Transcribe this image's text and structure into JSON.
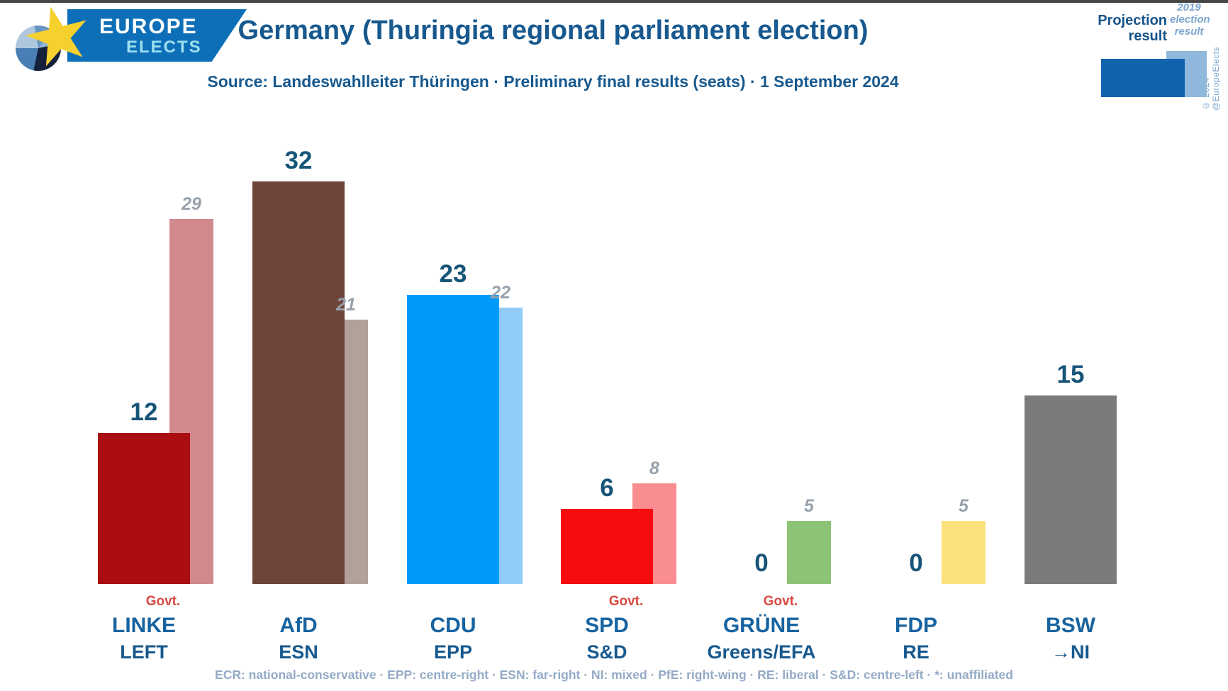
{
  "logo": {
    "line1": "EUROPE",
    "line2": "ELECTS",
    "banner_color": "#0d6fb8",
    "star_color": "#f6d02c"
  },
  "header": {
    "title": "Germany (Thuringia regional parliament election)",
    "subtitle": "Source: Landeswahlleiter Thüringen · Preliminary final results (seats) · 1 September 2024"
  },
  "legend": {
    "projection_label_line1": "Projection",
    "projection_label_line2": "result",
    "previous_label_line1": "2019",
    "previous_label_line2": "election",
    "previous_label_line3": "result",
    "projection_color": "#1263ae",
    "previous_color": "#8fb8dc",
    "copyright": "© 2024 @EuropeElects"
  },
  "chart_data": {
    "type": "bar",
    "title": "Germany (Thuringia regional parliament election)",
    "categories": [
      "LINKE",
      "AfD",
      "CDU",
      "SPD",
      "GRÜNE",
      "FDP",
      "BSW"
    ],
    "series": [
      {
        "name": "Projection result",
        "values": [
          12,
          32,
          23,
          6,
          0,
          0,
          15
        ]
      },
      {
        "name": "2019 election result",
        "values": [
          29,
          21,
          22,
          8,
          5,
          5,
          null
        ]
      }
    ],
    "ylim": [
      0,
      35
    ],
    "grid": false,
    "legend_position": "top-right"
  },
  "parties": [
    {
      "slug": "linke",
      "name": "LINKE",
      "group": "LEFT",
      "projection": 12,
      "previous": 29,
      "projection_display": "12",
      "previous_display": "29",
      "projection_color": "#aa0e10",
      "previous_color": "#d2898d",
      "govt": true
    },
    {
      "slug": "afd",
      "name": "AfD",
      "group": "ESN",
      "projection": 32,
      "previous": 21,
      "projection_display": "32",
      "previous_display": "21",
      "projection_color": "#704539",
      "previous_color": "#b2a19b",
      "govt": false
    },
    {
      "slug": "cdu",
      "name": "CDU",
      "group": "EPP",
      "projection": 23,
      "previous": 22,
      "projection_display": "23",
      "previous_display": "22",
      "projection_color": "#009bfa",
      "previous_color": "#92ccf8",
      "govt": false
    },
    {
      "slug": "spd",
      "name": "SPD",
      "group": "S&D",
      "projection": 6,
      "previous": 8,
      "projection_display": "6",
      "previous_display": "8",
      "projection_color": "#f60c0c",
      "previous_color": "#fa8d90",
      "govt": true
    },
    {
      "slug": "grune",
      "name": "GRÜNE",
      "group": "Greens/EFA",
      "projection": 0,
      "previous": 5,
      "projection_display": "0",
      "previous_display": "5",
      "projection_color": null,
      "previous_color": "#8dc377",
      "govt": true
    },
    {
      "slug": "fdp",
      "name": "FDP",
      "group": "RE",
      "projection": 0,
      "previous": 5,
      "projection_display": "0",
      "previous_display": "5",
      "projection_color": null,
      "previous_color": "#fce17d",
      "govt": false
    },
    {
      "slug": "bsw",
      "name": "BSW",
      "group": "→NI",
      "projection": 15,
      "previous": null,
      "projection_display": "15",
      "previous_display": null,
      "projection_color": "#7b7b7b",
      "previous_color": null,
      "govt": false
    }
  ],
  "govt_label": "Govt.",
  "footer": "ECR: national-conservative · EPP: centre-right · ESN: far-right · NI: mixed · PfE: right-wing · RE: liberal · S&D: centre-left · *: unaffiliated"
}
